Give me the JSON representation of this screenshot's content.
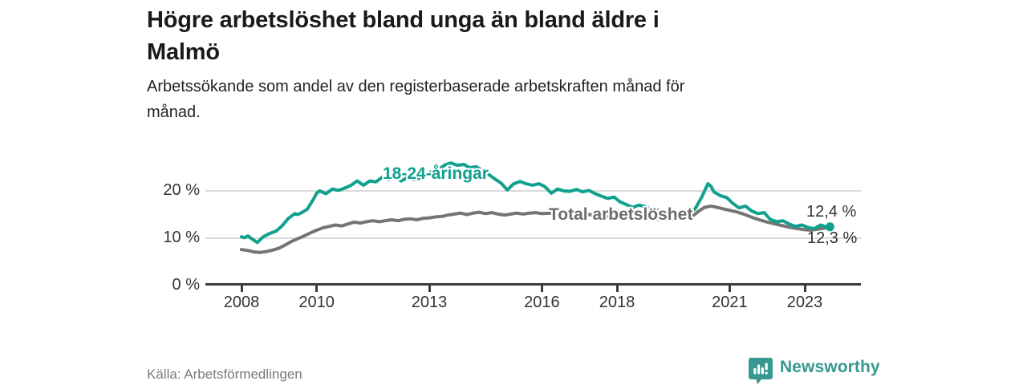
{
  "header": {
    "title_lines": [
      "Högre arbetslöshet bland unga än bland äldre i",
      "Malmö"
    ],
    "subtitle_lines": [
      "Arbetssökande som andel av den registerbaserade arbetskraften månad för",
      "månad."
    ]
  },
  "chart_data": {
    "type": "line",
    "title": "Högre arbetslöshet bland unga än bland äldre i Malmö",
    "subtitle": "Arbetssökande som andel av den registerbaserade arbetskraften månad för månad.",
    "unit": "%",
    "grid": "horizontal",
    "legend_position": "inline-labels",
    "xlim": [
      2007.0,
      2024.5
    ],
    "ylim": [
      0,
      27
    ],
    "x_ticks": [
      {
        "label": "2008",
        "year": 2008
      },
      {
        "label": "2010",
        "year": 2010
      },
      {
        "label": "2013",
        "year": 2013
      },
      {
        "label": "2016",
        "year": 2016
      },
      {
        "label": "2018",
        "year": 2018
      },
      {
        "label": "2021",
        "year": 2021
      },
      {
        "label": "2023",
        "year": 2023
      }
    ],
    "y_ticks": [
      {
        "label": "20 %",
        "value": 20
      },
      {
        "label": "10 %",
        "value": 10
      },
      {
        "label": "0 %",
        "value": 0
      }
    ],
    "series": [
      {
        "name": "18-24-åringar",
        "color": "#10a08e",
        "end_label": "12,4 %",
        "end_dot": true,
        "points": [
          [
            2008.0,
            10.3
          ],
          [
            2008.08,
            10.1
          ],
          [
            2008.17,
            10.5
          ],
          [
            2008.25,
            10.0
          ],
          [
            2008.42,
            9.1
          ],
          [
            2008.58,
            10.3
          ],
          [
            2008.75,
            11.0
          ],
          [
            2008.92,
            11.5
          ],
          [
            2009.08,
            12.6
          ],
          [
            2009.25,
            14.2
          ],
          [
            2009.42,
            15.2
          ],
          [
            2009.5,
            15.0
          ],
          [
            2009.58,
            15.3
          ],
          [
            2009.75,
            16.1
          ],
          [
            2009.92,
            18.3
          ],
          [
            2010.0,
            19.5
          ],
          [
            2010.08,
            20.0
          ],
          [
            2010.25,
            19.4
          ],
          [
            2010.42,
            20.4
          ],
          [
            2010.58,
            20.1
          ],
          [
            2010.75,
            20.6
          ],
          [
            2010.92,
            21.2
          ],
          [
            2011.08,
            22.1
          ],
          [
            2011.25,
            21.2
          ],
          [
            2011.42,
            22.1
          ],
          [
            2011.58,
            21.9
          ],
          [
            2011.75,
            22.9
          ],
          [
            2011.92,
            22.4
          ],
          [
            2012.08,
            23.2
          ],
          [
            2012.25,
            22.1
          ],
          [
            2012.42,
            22.8
          ],
          [
            2012.58,
            22.4
          ],
          [
            2012.75,
            22.7
          ],
          [
            2012.92,
            23.4
          ],
          [
            2013.08,
            24.2
          ],
          [
            2013.25,
            24.5
          ],
          [
            2013.42,
            25.5
          ],
          [
            2013.58,
            25.9
          ],
          [
            2013.75,
            25.4
          ],
          [
            2013.92,
            25.6
          ],
          [
            2014.08,
            24.9
          ],
          [
            2014.25,
            25.1
          ],
          [
            2014.42,
            24.3
          ],
          [
            2014.58,
            23.5
          ],
          [
            2014.75,
            22.5
          ],
          [
            2014.92,
            21.6
          ],
          [
            2015.08,
            20.2
          ],
          [
            2015.25,
            21.5
          ],
          [
            2015.42,
            22.0
          ],
          [
            2015.58,
            21.5
          ],
          [
            2015.75,
            21.2
          ],
          [
            2015.92,
            21.5
          ],
          [
            2016.08,
            20.9
          ],
          [
            2016.25,
            19.5
          ],
          [
            2016.42,
            20.4
          ],
          [
            2016.58,
            20.0
          ],
          [
            2016.75,
            19.9
          ],
          [
            2016.92,
            20.3
          ],
          [
            2017.08,
            19.8
          ],
          [
            2017.25,
            20.1
          ],
          [
            2017.42,
            19.4
          ],
          [
            2017.58,
            18.9
          ],
          [
            2017.75,
            18.4
          ],
          [
            2017.92,
            18.7
          ],
          [
            2018.08,
            17.7
          ],
          [
            2018.25,
            17.1
          ],
          [
            2018.42,
            16.5
          ],
          [
            2018.58,
            17.0
          ],
          [
            2018.75,
            16.7
          ],
          [
            2018.92,
            16.2
          ],
          [
            2019.08,
            15.9
          ],
          [
            2019.25,
            15.6
          ],
          [
            2019.42,
            15.4
          ],
          [
            2019.58,
            15.3
          ],
          [
            2019.75,
            15.1
          ],
          [
            2019.92,
            15.3
          ],
          [
            2020.08,
            16.2
          ],
          [
            2020.25,
            18.6
          ],
          [
            2020.42,
            21.5
          ],
          [
            2020.5,
            21.0
          ],
          [
            2020.58,
            19.8
          ],
          [
            2020.75,
            19.0
          ],
          [
            2020.92,
            18.6
          ],
          [
            2021.08,
            17.4
          ],
          [
            2021.25,
            16.4
          ],
          [
            2021.42,
            16.8
          ],
          [
            2021.58,
            15.8
          ],
          [
            2021.75,
            15.2
          ],
          [
            2021.92,
            15.4
          ],
          [
            2022.08,
            14.0
          ],
          [
            2022.25,
            13.5
          ],
          [
            2022.42,
            13.7
          ],
          [
            2022.58,
            13.0
          ],
          [
            2022.75,
            12.5
          ],
          [
            2022.92,
            12.8
          ],
          [
            2023.08,
            12.3
          ],
          [
            2023.25,
            12.0
          ],
          [
            2023.42,
            12.8
          ],
          [
            2023.5,
            12.6
          ],
          [
            2023.58,
            12.2
          ],
          [
            2023.67,
            12.4
          ]
        ]
      },
      {
        "name": "Total arbetslöshet",
        "color": "#747474",
        "end_label": "12,3 %",
        "end_dot": false,
        "points": [
          [
            2008.0,
            7.6
          ],
          [
            2008.17,
            7.4
          ],
          [
            2008.33,
            7.1
          ],
          [
            2008.5,
            7.0
          ],
          [
            2008.67,
            7.2
          ],
          [
            2008.83,
            7.5
          ],
          [
            2009.0,
            7.9
          ],
          [
            2009.17,
            8.6
          ],
          [
            2009.33,
            9.3
          ],
          [
            2009.5,
            9.9
          ],
          [
            2009.67,
            10.5
          ],
          [
            2009.83,
            11.1
          ],
          [
            2010.0,
            11.7
          ],
          [
            2010.17,
            12.2
          ],
          [
            2010.33,
            12.5
          ],
          [
            2010.5,
            12.8
          ],
          [
            2010.67,
            12.6
          ],
          [
            2010.83,
            13.0
          ],
          [
            2011.0,
            13.4
          ],
          [
            2011.17,
            13.2
          ],
          [
            2011.33,
            13.5
          ],
          [
            2011.5,
            13.7
          ],
          [
            2011.67,
            13.5
          ],
          [
            2011.83,
            13.7
          ],
          [
            2012.0,
            13.9
          ],
          [
            2012.17,
            13.7
          ],
          [
            2012.33,
            14.0
          ],
          [
            2012.5,
            14.1
          ],
          [
            2012.67,
            13.9
          ],
          [
            2012.83,
            14.2
          ],
          [
            2013.0,
            14.3
          ],
          [
            2013.17,
            14.5
          ],
          [
            2013.33,
            14.6
          ],
          [
            2013.5,
            14.9
          ],
          [
            2013.67,
            15.1
          ],
          [
            2013.83,
            15.3
          ],
          [
            2014.0,
            15.0
          ],
          [
            2014.17,
            15.3
          ],
          [
            2014.33,
            15.5
          ],
          [
            2014.5,
            15.2
          ],
          [
            2014.67,
            15.4
          ],
          [
            2014.83,
            15.1
          ],
          [
            2015.0,
            14.9
          ],
          [
            2015.17,
            15.1
          ],
          [
            2015.33,
            15.3
          ],
          [
            2015.5,
            15.1
          ],
          [
            2015.67,
            15.3
          ],
          [
            2015.83,
            15.4
          ],
          [
            2016.0,
            15.2
          ],
          [
            2016.25,
            15.3
          ],
          [
            2016.5,
            15.0
          ],
          [
            2016.75,
            15.1
          ],
          [
            2017.0,
            14.9
          ],
          [
            2017.25,
            15.0
          ],
          [
            2017.5,
            14.8
          ],
          [
            2017.75,
            14.6
          ],
          [
            2018.0,
            14.5
          ],
          [
            2018.25,
            14.4
          ],
          [
            2018.5,
            14.3
          ],
          [
            2018.75,
            14.2
          ],
          [
            2019.0,
            14.0
          ],
          [
            2019.25,
            13.9
          ],
          [
            2019.5,
            13.9
          ],
          [
            2019.75,
            14.1
          ],
          [
            2020.0,
            14.6
          ],
          [
            2020.17,
            15.7
          ],
          [
            2020.33,
            16.5
          ],
          [
            2020.5,
            16.8
          ],
          [
            2020.67,
            16.5
          ],
          [
            2020.83,
            16.2
          ],
          [
            2021.0,
            15.9
          ],
          [
            2021.17,
            15.6
          ],
          [
            2021.33,
            15.2
          ],
          [
            2021.5,
            14.7
          ],
          [
            2021.67,
            14.2
          ],
          [
            2021.83,
            13.8
          ],
          [
            2022.0,
            13.4
          ],
          [
            2022.17,
            13.1
          ],
          [
            2022.33,
            12.8
          ],
          [
            2022.5,
            12.5
          ],
          [
            2022.67,
            12.2
          ],
          [
            2022.83,
            12.0
          ],
          [
            2023.0,
            11.8
          ],
          [
            2023.17,
            11.7
          ],
          [
            2023.33,
            11.9
          ],
          [
            2023.5,
            12.1
          ],
          [
            2023.67,
            12.3
          ]
        ]
      }
    ]
  },
  "footer": {
    "source": "Källa: Arbetsförmedlingen",
    "brand": "Newsworthy",
    "brand_color": "#37988f"
  }
}
